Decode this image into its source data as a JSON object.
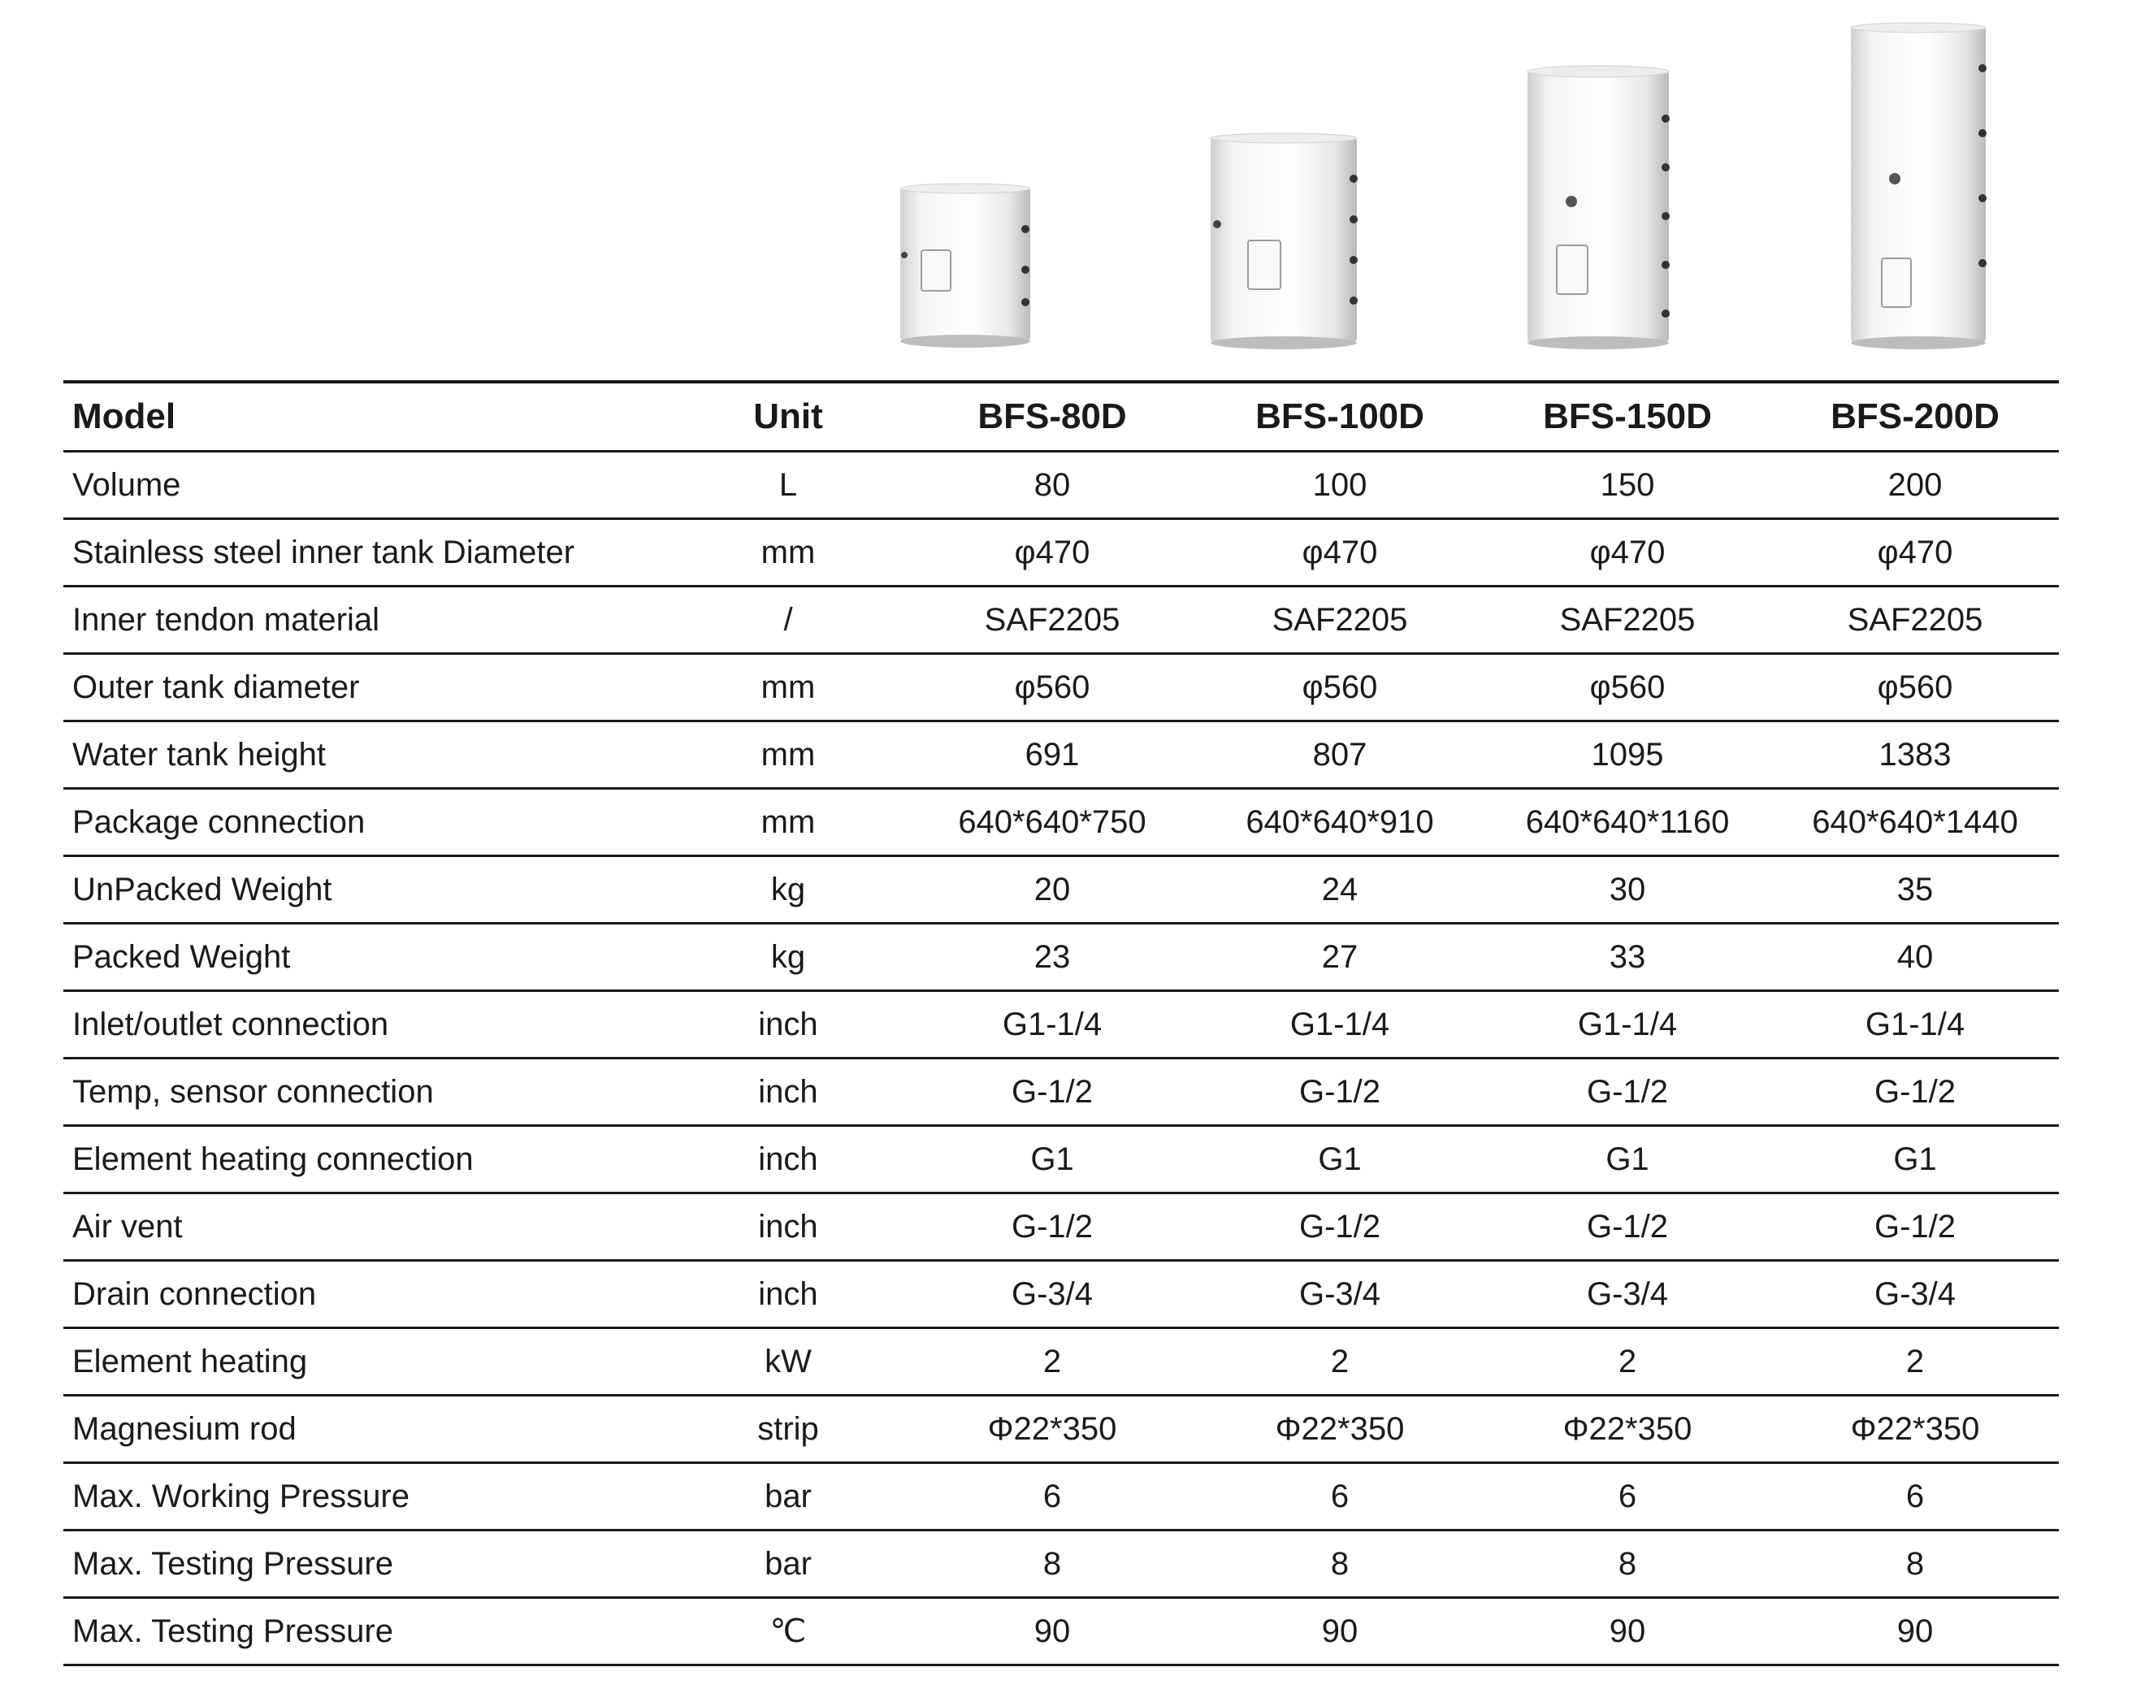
{
  "products": [
    {
      "model": "BFS-80D",
      "image": "water-tank-short"
    },
    {
      "model": "BFS-100D",
      "image": "water-tank-medium"
    },
    {
      "model": "BFS-150D",
      "image": "water-tank-tall"
    },
    {
      "model": "BFS-200D",
      "image": "water-tank-tallest"
    }
  ],
  "table": {
    "headers": [
      "Model",
      "Unit",
      "BFS-80D",
      "BFS-100D",
      "BFS-150D",
      "BFS-200D"
    ],
    "rows": [
      {
        "param": "Volume",
        "unit": "L",
        "values": [
          "80",
          "100",
          "150",
          "200"
        ]
      },
      {
        "param": "Stainless steel inner tank Diameter",
        "unit": "mm",
        "values": [
          "φ470",
          "φ470",
          "φ470",
          "φ470"
        ]
      },
      {
        "param": "Inner tendon material",
        "unit": "/",
        "values": [
          "SAF2205",
          "SAF2205",
          "SAF2205",
          "SAF2205"
        ]
      },
      {
        "param": "Outer tank diameter",
        "unit": "mm",
        "values": [
          "φ560",
          "φ560",
          "φ560",
          "φ560"
        ]
      },
      {
        "param": "Water tank height",
        "unit": "mm",
        "values": [
          "691",
          "807",
          "1095",
          "1383"
        ]
      },
      {
        "param": "Package connection",
        "unit": "mm",
        "values": [
          "640*640*750",
          "640*640*910",
          "640*640*1160",
          "640*640*1440"
        ]
      },
      {
        "param": "UnPacked Weight",
        "unit": "kg",
        "values": [
          "20",
          "24",
          "30",
          "35"
        ]
      },
      {
        "param": "Packed Weight",
        "unit": "kg",
        "values": [
          "23",
          "27",
          "33",
          "40"
        ]
      },
      {
        "param": "Inlet/outlet connection",
        "unit": "inch",
        "values": [
          "G1-1/4",
          "G1-1/4",
          "G1-1/4",
          "G1-1/4"
        ]
      },
      {
        "param": "Temp, sensor connection",
        "unit": "inch",
        "values": [
          "G-1/2",
          "G-1/2",
          "G-1/2",
          "G-1/2"
        ]
      },
      {
        "param": "Element heating connection",
        "unit": "inch",
        "values": [
          "G1",
          "G1",
          "G1",
          "G1"
        ]
      },
      {
        "param": "Air vent",
        "unit": "inch",
        "values": [
          "G-1/2",
          "G-1/2",
          "G-1/2",
          "G-1/2"
        ]
      },
      {
        "param": "Drain connection",
        "unit": "inch",
        "values": [
          "G-3/4",
          "G-3/4",
          "G-3/4",
          "G-3/4"
        ]
      },
      {
        "param": "Element heating",
        "unit": "kW",
        "values": [
          "2",
          "2",
          "2",
          "2"
        ]
      },
      {
        "param": "Magnesium rod",
        "unit": "strip",
        "values": [
          "Φ22*350",
          "Φ22*350",
          "Φ22*350",
          "Φ22*350"
        ]
      },
      {
        "param": "Max. Working Pressure",
        "unit": "bar",
        "values": [
          "6",
          "6",
          "6",
          "6"
        ]
      },
      {
        "param": "Max. Testing Pressure",
        "unit": "bar",
        "values": [
          "8",
          "8",
          "8",
          "8"
        ]
      },
      {
        "param": "Max. Testing Pressure",
        "unit": "℃",
        "values": [
          "90",
          "90",
          "90",
          "90"
        ]
      }
    ]
  }
}
